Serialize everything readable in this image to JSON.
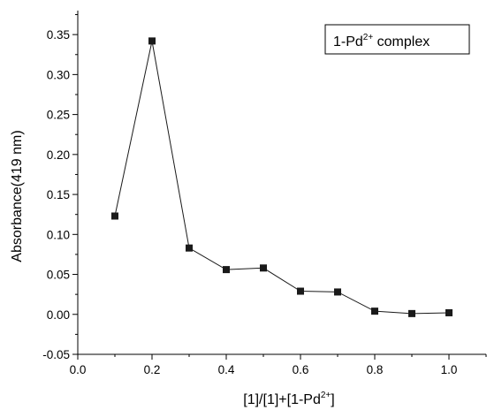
{
  "chart_data": {
    "type": "line",
    "title": "",
    "xlabel": {
      "main": "[1]/[1]+[1-Pd",
      "sup": "2+",
      "close": "]"
    },
    "ylabel": "Absorbance(419 nm)",
    "xlim": [
      0.0,
      1.1
    ],
    "ylim": [
      -0.05,
      0.38
    ],
    "x_ticks": [
      "0.0",
      "0.2",
      "0.4",
      "0.6",
      "0.8",
      "1.0"
    ],
    "y_ticks": [
      "-0.05",
      "0.00",
      "0.05",
      "0.10",
      "0.15",
      "0.20",
      "0.25",
      "0.30",
      "0.35"
    ],
    "grid": false,
    "legend": {
      "placement": "top-right",
      "boxed": true
    },
    "series": [
      {
        "name": {
          "main": "1-Pd",
          "sup": "2+",
          "rest": " complex"
        },
        "marker": "square",
        "color": "#1a1a1a",
        "x": [
          0.1,
          0.2,
          0.3,
          0.4,
          0.5,
          0.6,
          0.7,
          0.8,
          0.9,
          1.0
        ],
        "y": [
          0.123,
          0.342,
          0.083,
          0.056,
          0.058,
          0.029,
          0.028,
          0.004,
          0.001,
          0.002
        ]
      }
    ]
  }
}
